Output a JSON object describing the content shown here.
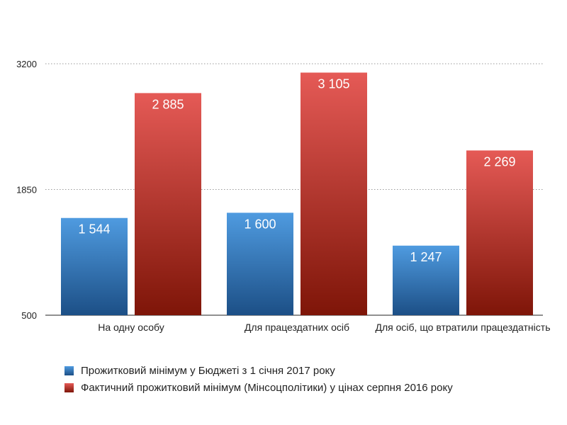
{
  "chart_data": {
    "type": "bar",
    "title": "",
    "xlabel": "",
    "ylabel": "",
    "ylim": [
      500,
      3200
    ],
    "yticks": [
      500,
      1850,
      3200
    ],
    "grid": true,
    "legend_position": "bottom",
    "categories": [
      "На одну особу",
      "Для працездатних осіб",
      "Для осіб, що втратили працездатність"
    ],
    "series": [
      {
        "name": "Прожитковий мінімум у Бюджеті з 1 січня 2017 року",
        "values": [
          1544,
          1600,
          1247
        ],
        "labels": [
          "1 544",
          "1 600",
          "1 247"
        ],
        "color_top": "#4f9be0",
        "color_bottom": "#1c4f86",
        "legend_color": "#2f72c4"
      },
      {
        "name": "Фактичний прожитковий мінімум (Мінсоцполітики) у цінах серпня 2016 року",
        "values": [
          2885,
          3105,
          2269
        ],
        "labels": [
          "2 885",
          "3 105",
          "2 269"
        ],
        "color_top": "#e55a56",
        "color_bottom": "#7e1508",
        "legend_color": "#c3312b"
      }
    ]
  }
}
